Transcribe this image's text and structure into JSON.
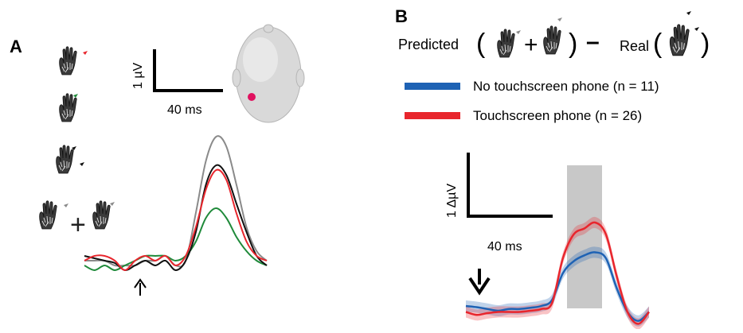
{
  "panel_a": {
    "label": "A",
    "scale_y_label": "1 µV",
    "scale_x_label": "40 ms"
  },
  "panel_b": {
    "label": "B",
    "equation": {
      "predicted": "Predicted",
      "plus": "+",
      "minus": "–",
      "real": "Real",
      "paren_open": "(",
      "paren_close": ")"
    },
    "scale_y_label": "1 ΔµV",
    "scale_x_label": "40 ms"
  },
  "colors": {
    "grey": "#8a8a8a",
    "black": "#111111",
    "red": "#e8262d",
    "green": "#1f8a3a",
    "blue": "#1e62b4",
    "shade": "#c8c8c8",
    "electrode": "#e0115f"
  },
  "chart_data": [
    {
      "panel": "A",
      "type": "line",
      "series": [
        {
          "color": "#111111",
          "values": [
            0.1,
            0.05,
            0.0,
            -0.05,
            -0.2,
            -0.1,
            0.0,
            -0.1,
            0.0,
            -0.2,
            0.0,
            0.6,
            1.6,
            2.0,
            1.8,
            1.2,
            0.6,
            0.1,
            -0.1
          ]
        },
        {
          "color": "#e8262d",
          "values": [
            0.0,
            0.1,
            0.1,
            0.0,
            -0.2,
            0.0,
            0.1,
            0.0,
            0.1,
            -0.1,
            0.1,
            0.7,
            1.5,
            1.9,
            1.7,
            1.0,
            0.4,
            0.1,
            0.0
          ]
        },
        {
          "color": "#1f8a3a",
          "values": [
            -0.1,
            -0.2,
            -0.1,
            -0.2,
            -0.1,
            0.0,
            0.1,
            0.1,
            0.1,
            0.0,
            0.1,
            0.4,
            0.9,
            1.1,
            0.9,
            0.5,
            0.2,
            0.0,
            -0.1
          ]
        },
        {
          "color": "#8a8a8a",
          "values": [
            0.0,
            0.0,
            0.0,
            -0.1,
            -0.1,
            -0.1,
            0.0,
            0.0,
            0.1,
            -0.1,
            0.0,
            1.0,
            2.1,
            2.6,
            2.4,
            1.6,
            0.7,
            0.2,
            0.0
          ]
        }
      ]
    },
    {
      "panel": "B",
      "type": "line",
      "series": [
        {
          "name": "No touchscreen phone (n = 11)",
          "color": "#1e62b4",
          "values": [
            0.0,
            -0.02,
            -0.05,
            -0.08,
            -0.05,
            -0.05,
            -0.03,
            0.0,
            0.1,
            0.55,
            0.75,
            0.85,
            0.9,
            0.8,
            0.3,
            -0.1,
            -0.25,
            -0.1
          ]
        },
        {
          "name": "Touchscreen phone (n = 26)",
          "color": "#e8262d",
          "values": [
            -0.1,
            -0.15,
            -0.12,
            -0.1,
            -0.1,
            -0.1,
            -0.08,
            -0.05,
            0.05,
            0.8,
            1.2,
            1.3,
            1.4,
            1.2,
            0.5,
            -0.1,
            -0.3,
            -0.1
          ]
        }
      ]
    }
  ]
}
